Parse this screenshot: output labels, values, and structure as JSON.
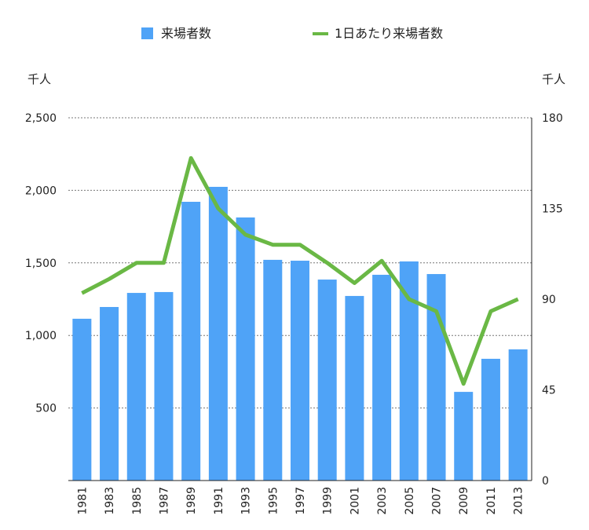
{
  "chart_data": {
    "type": "bar+line",
    "categories": [
      "1981",
      "1983",
      "1985",
      "1987",
      "1989",
      "1991",
      "1993",
      "1995",
      "1997",
      "1999",
      "2001",
      "2003",
      "2005",
      "2007",
      "2009",
      "2011",
      "2013"
    ],
    "series": [
      {
        "name": "来場者数",
        "type": "bar",
        "axis": "left",
        "color": "#4fa3f7",
        "values": [
          1115,
          1196,
          1293,
          1299,
          1921,
          2024,
          1813,
          1521,
          1515,
          1385,
          1272,
          1418,
          1510,
          1423,
          611,
          839,
          904
        ]
      },
      {
        "name": "1日あたり来場者数",
        "type": "line",
        "axis": "right",
        "color": "#6ab845",
        "values": [
          93,
          100,
          108,
          108,
          160,
          135,
          122,
          117,
          117,
          108,
          98,
          109,
          90,
          84,
          48,
          84,
          90
        ]
      }
    ],
    "left_axis": {
      "unit": "千人",
      "ylim": [
        0,
        2500
      ],
      "ticks": [
        "500",
        "1,000",
        "1,500",
        "2,000",
        "2,500"
      ],
      "tick_values": [
        500,
        1000,
        1500,
        2000,
        2500
      ]
    },
    "right_axis": {
      "unit": "千人",
      "ylim": [
        0,
        180
      ],
      "ticks": [
        "0",
        "45",
        "90",
        "135",
        "180"
      ],
      "tick_values": [
        0,
        45,
        90,
        135,
        180
      ]
    },
    "grid": true,
    "legend": "top-center"
  }
}
